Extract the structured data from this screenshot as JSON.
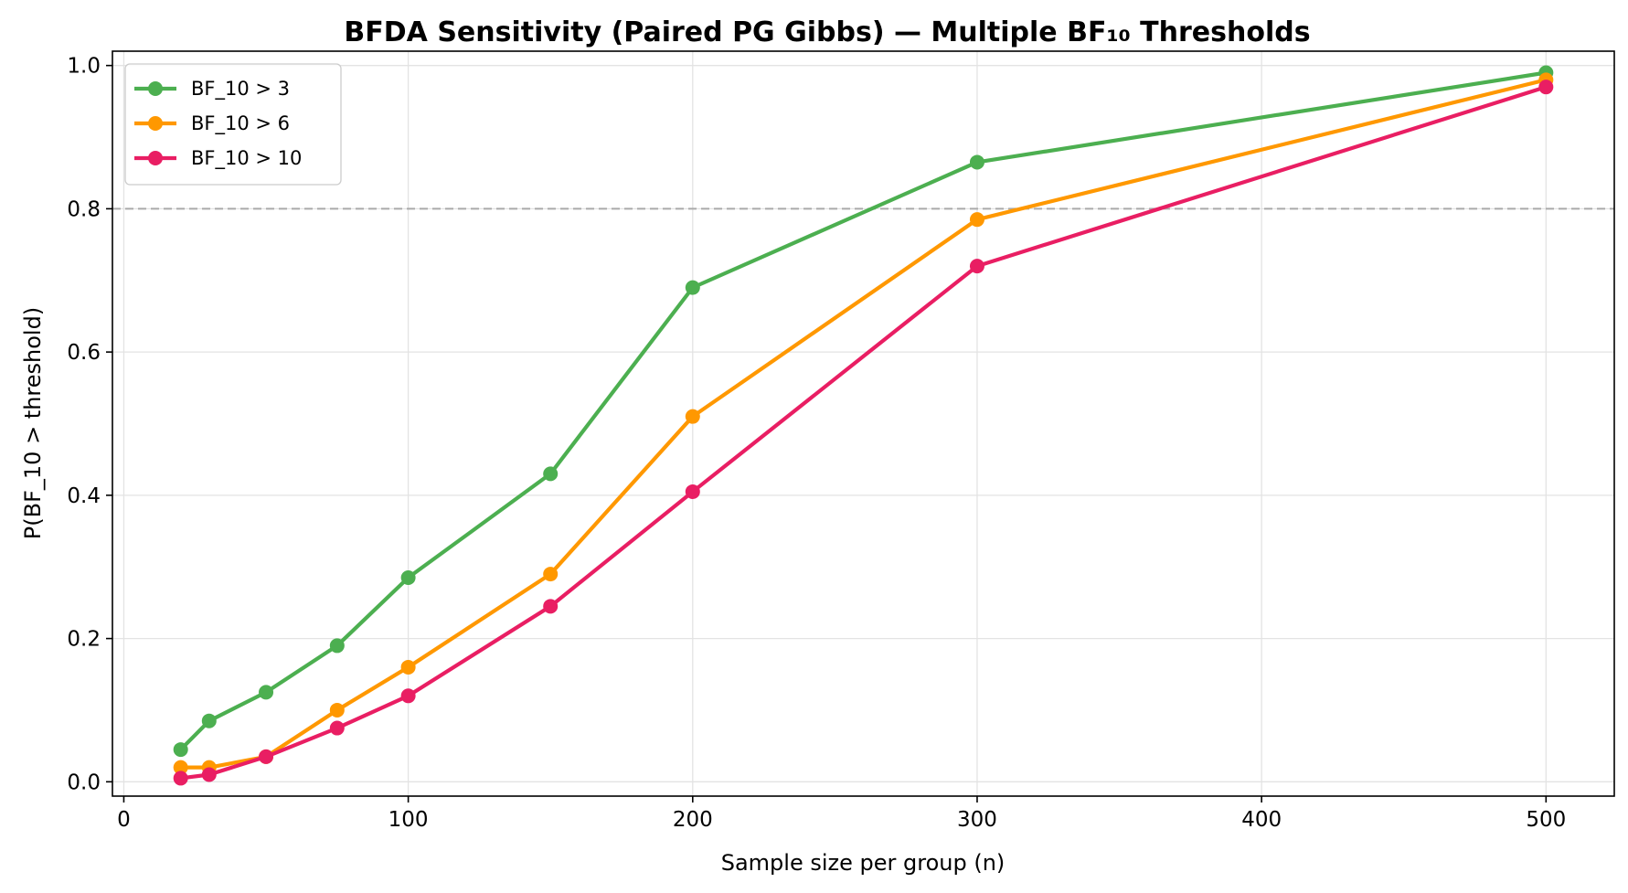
{
  "chart_data": {
    "type": "line",
    "title": "BFDA Sensitivity (Paired PG Gibbs) — Multiple BF₁₀ Thresholds",
    "xlabel": "Sample size per group (n)",
    "ylabel": "P(BF_10 > threshold)",
    "xlim": [
      -4,
      524
    ],
    "ylim": [
      -0.02,
      1.02
    ],
    "xticks": [
      0,
      100,
      200,
      300,
      400,
      500
    ],
    "yticks": [
      0.0,
      0.2,
      0.4,
      0.6,
      0.8,
      1.0
    ],
    "xtick_labels": [
      "0",
      "100",
      "200",
      "300",
      "400",
      "500"
    ],
    "ytick_labels": [
      "0.0",
      "0.2",
      "0.4",
      "0.6",
      "0.8",
      "1.0"
    ],
    "grid": true,
    "legend_position": "upper-left",
    "reference_line": {
      "y": 0.8,
      "style": "dashed",
      "color": "#aaaaaa"
    },
    "x": [
      20,
      30,
      50,
      75,
      100,
      150,
      200,
      300,
      500
    ],
    "series": [
      {
        "name": "BF_10 > 3",
        "color": "#4caf50",
        "values": [
          0.045,
          0.085,
          0.125,
          0.19,
          0.285,
          0.43,
          0.69,
          0.865,
          0.99
        ]
      },
      {
        "name": "BF_10 > 6",
        "color": "#ff9800",
        "values": [
          0.02,
          0.02,
          0.035,
          0.1,
          0.16,
          0.29,
          0.51,
          0.785,
          0.98
        ]
      },
      {
        "name": "BF_10 > 10",
        "color": "#e91e63",
        "values": [
          0.005,
          0.01,
          0.035,
          0.075,
          0.12,
          0.245,
          0.405,
          0.72,
          0.97
        ]
      }
    ]
  }
}
